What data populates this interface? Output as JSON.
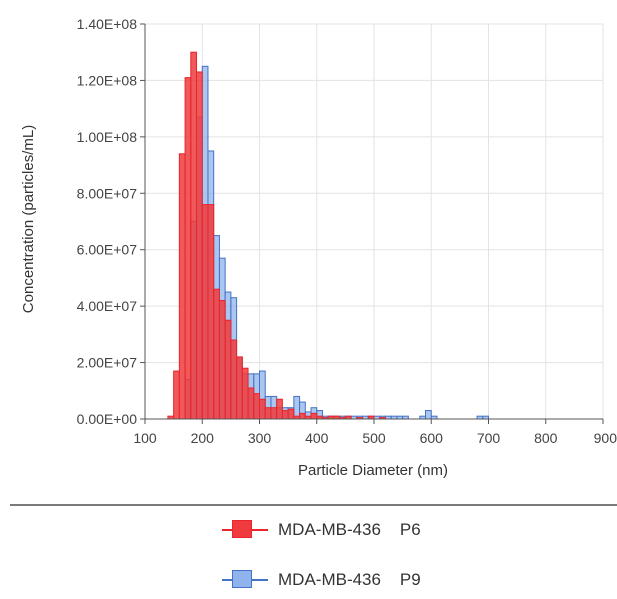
{
  "chart_data": {
    "type": "bar",
    "ylabel": "Concentration (particles/mL)",
    "xlabel": "Particle Diameter (nm)",
    "xlim": [
      100,
      900
    ],
    "ylim": [
      0,
      140000000
    ],
    "x_ticks": [
      "100",
      "200",
      "300",
      "400",
      "500",
      "600",
      "700",
      "800",
      "900"
    ],
    "y_ticks": [
      "0.00E+00",
      "2.00E+07",
      "4.00E+07",
      "6.00E+07",
      "8.00E+07",
      "1.00E+08",
      "1.20E+08",
      "1.40E+08"
    ],
    "bin_width": 10,
    "grid": true,
    "legend_position": "bottom",
    "series": [
      {
        "name": "MDA-MB-436    P6",
        "color": "#e8262b",
        "fill": "#ef3b3d",
        "bin_starts": [
          140,
          150,
          160,
          170,
          180,
          190,
          200,
          210,
          220,
          230,
          240,
          250,
          260,
          270,
          280,
          290,
          300,
          310,
          320,
          330,
          340,
          350,
          360,
          370,
          380,
          390,
          400,
          410,
          420,
          430,
          440,
          450,
          460,
          470,
          480,
          490,
          500,
          510,
          520,
          530,
          540,
          550,
          560,
          570,
          580,
          590,
          600,
          610,
          620
        ],
        "values": [
          1000000,
          17000000,
          94000000,
          121000000,
          130000000,
          123000000,
          76000000,
          76000000,
          46000000,
          42000000,
          35000000,
          28000000,
          22000000,
          18000000,
          11000000,
          9000000,
          7000000,
          4000000,
          4000000,
          7000000,
          3000000,
          3500000,
          1000000,
          2000000,
          1000000,
          2000000,
          1000000,
          500000,
          1000000,
          1000000,
          500000,
          1000000,
          0,
          500000,
          0,
          1000000,
          0,
          500000,
          0,
          0,
          0,
          0,
          0,
          0,
          0,
          0,
          0,
          0,
          0
        ]
      },
      {
        "name": "MDA-MB-436    P9",
        "color": "#4472c4",
        "fill": "#8fb3ec",
        "bin_starts": [
          140,
          150,
          160,
          170,
          180,
          190,
          200,
          210,
          220,
          230,
          240,
          250,
          260,
          270,
          280,
          290,
          300,
          310,
          320,
          330,
          340,
          350,
          360,
          370,
          380,
          390,
          400,
          410,
          420,
          430,
          440,
          450,
          460,
          470,
          480,
          490,
          500,
          510,
          520,
          530,
          540,
          550,
          560,
          570,
          580,
          590,
          600,
          610,
          620,
          630,
          640,
          650,
          660,
          670,
          680,
          690,
          700,
          710,
          720,
          730,
          740,
          750,
          760,
          770,
          780,
          790,
          800,
          810
        ],
        "values": [
          0,
          0,
          0,
          14000000,
          70000000,
          107000000,
          125000000,
          95000000,
          65000000,
          57000000,
          45000000,
          43000000,
          22000000,
          16000000,
          16000000,
          16000000,
          17000000,
          8000000,
          8000000,
          4000000,
          4000000,
          4000000,
          8000000,
          6000000,
          2500000,
          4000000,
          3000000,
          1000000,
          1000000,
          1000000,
          1000000,
          1000000,
          1000000,
          1000000,
          1000000,
          1000000,
          1000000,
          1000000,
          1000000,
          1000000,
          1000000,
          1000000,
          0,
          0,
          1000000,
          3000000,
          1000000,
          0,
          0,
          0,
          0,
          0,
          0,
          0,
          1000000,
          1000000,
          0,
          0,
          0,
          0,
          0,
          0,
          0,
          0,
          0,
          0,
          0,
          0
        ]
      }
    ]
  },
  "legend": {
    "items": [
      {
        "label": "MDA-MB-436    P6",
        "color": "#e8262b",
        "fill": "#ef3b3d"
      },
      {
        "label": "MDA-MB-436    P9",
        "color": "#4472c4",
        "fill": "#8fb3ec"
      }
    ]
  }
}
